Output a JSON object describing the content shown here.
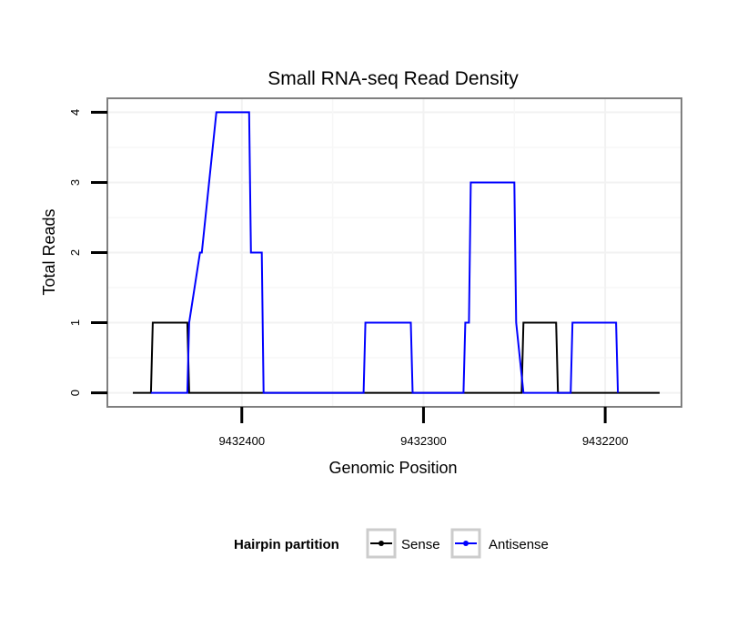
{
  "chart_data": {
    "type": "line",
    "title": "Small RNA-seq Read Density",
    "xlabel": "Genomic Position",
    "ylabel": "Total Reads",
    "x_reversed": true,
    "xlim": [
      9432474,
      9432158
    ],
    "ylim": [
      -0.2,
      4.2
    ],
    "x_ticks": [
      9432400,
      9432300,
      9432200
    ],
    "x_tick_labels": [
      "9432400",
      "9432300",
      "9432200"
    ],
    "y_ticks": [
      0,
      1,
      2,
      3,
      4
    ],
    "y_tick_labels": [
      "0",
      "1",
      "2",
      "3",
      "4"
    ],
    "grid": true,
    "legend": {
      "title": "Hairpin partition",
      "position": "bottom",
      "entries": [
        {
          "name": "Sense",
          "color": "#000000"
        },
        {
          "name": "Antisense",
          "color": "#0000ff"
        }
      ]
    },
    "series": [
      {
        "name": "Sense",
        "color": "#000000",
        "x": [
          9432460,
          9432450,
          9432449,
          9432430,
          9432429,
          9432420,
          9432380,
          9432300,
          9432246,
          9432245,
          9432227,
          9432226,
          9432170
        ],
        "y": [
          0,
          0,
          1,
          1,
          0,
          0,
          0,
          0,
          0,
          1,
          1,
          0,
          0
        ]
      },
      {
        "name": "Antisense",
        "color": "#0000ff",
        "x": [
          9432450,
          9432430,
          9432429,
          9432423,
          9432422,
          9432414,
          9432413,
          9432396,
          9432395,
          9432389,
          9432388,
          9432380,
          9432333,
          9432332,
          9432307,
          9432306,
          9432278,
          9432277,
          9432275,
          9432274,
          9432250,
          9432249,
          9432245,
          9432244,
          9432228,
          9432227,
          9432219,
          9432218,
          9432194,
          9432193
        ],
        "y": [
          0,
          0,
          1,
          2,
          2,
          4,
          4,
          4,
          2,
          2,
          0,
          0,
          0,
          1,
          1,
          0,
          0,
          1,
          1,
          3,
          3,
          1,
          0,
          0,
          0,
          0,
          0,
          1,
          1,
          0
        ]
      }
    ]
  }
}
